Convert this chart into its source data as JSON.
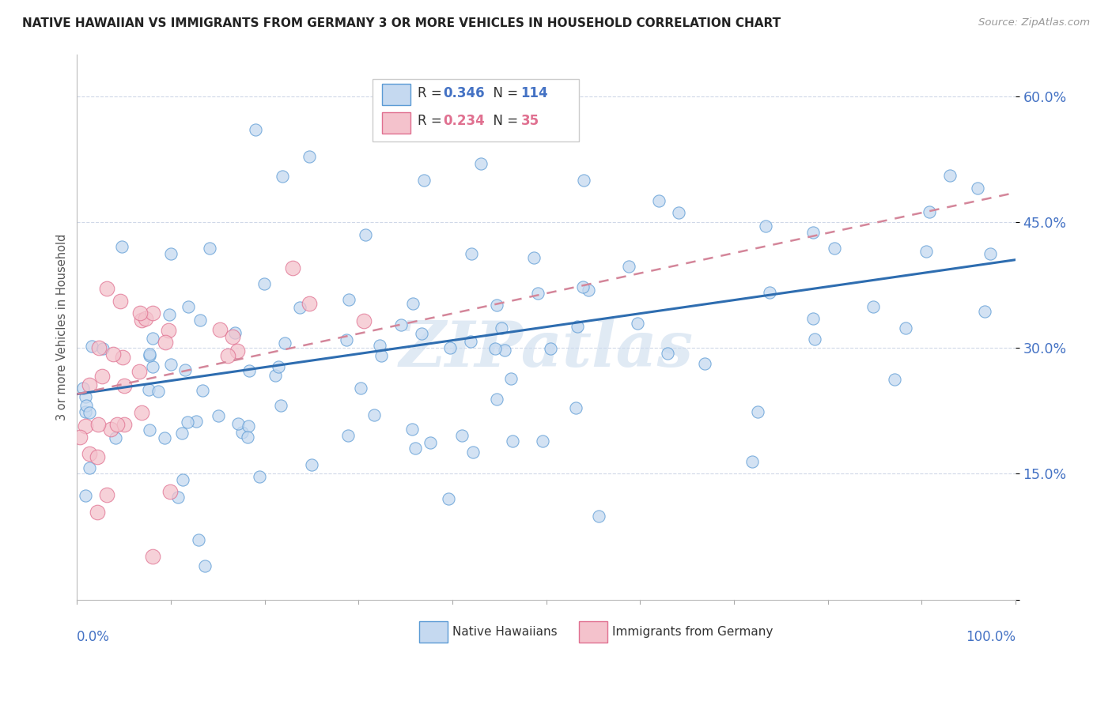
{
  "title": "NATIVE HAWAIIAN VS IMMIGRANTS FROM GERMANY 3 OR MORE VEHICLES IN HOUSEHOLD CORRELATION CHART",
  "source": "Source: ZipAtlas.com",
  "ylabel": "3 or more Vehicles in Household",
  "ytick_vals": [
    0.0,
    0.15,
    0.3,
    0.45,
    0.6
  ],
  "ytick_labels": [
    "",
    "15.0%",
    "30.0%",
    "45.0%",
    "60.0%"
  ],
  "xrange": [
    0.0,
    1.0
  ],
  "yrange": [
    0.0,
    0.65
  ],
  "legend_r1": "0.346",
  "legend_n1": "114",
  "legend_r2": "0.234",
  "legend_n2": "35",
  "legend_label1": "Native Hawaiians",
  "legend_label2": "Immigrants from Germany",
  "color_blue_fill": "#c5d9f0",
  "color_blue_edge": "#5b9bd5",
  "color_pink_fill": "#f4c2cc",
  "color_pink_edge": "#e07090",
  "color_blue_line": "#2e6db0",
  "color_pink_line": "#d4869a",
  "color_blue_text": "#4472c4",
  "color_pink_text": "#e07090",
  "watermark": "ZIPatlas",
  "watermark_color": "#ccdcee",
  "blue_line_start_y": 0.245,
  "blue_line_end_y": 0.405,
  "pink_line_start_y": 0.245,
  "pink_line_end_y": 0.485,
  "grid_color": "#d0d8e8",
  "background_color": "#ffffff"
}
